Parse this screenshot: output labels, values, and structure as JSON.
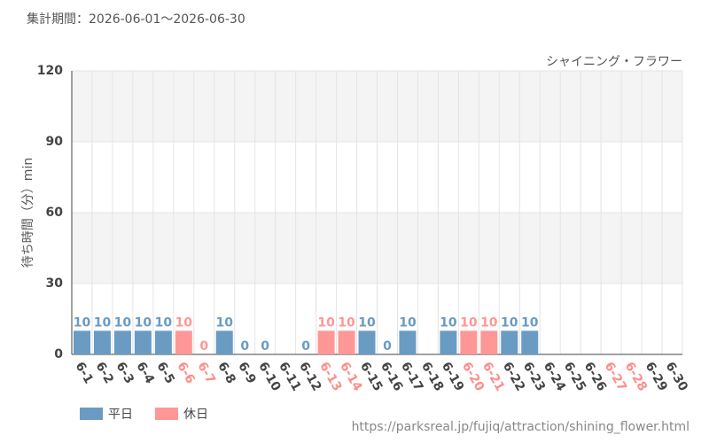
{
  "chart_data": {
    "type": "bar",
    "title": "集計期間：2026-06-01～2026-06-30",
    "annotation": "シャイニング・フラワー",
    "y_label": "待ち時間（分）min",
    "source": "https://parksreal.jp/fujiq/attraction/shining_flower.html",
    "categories": [
      "6-1",
      "6-2",
      "6-3",
      "6-4",
      "6-5",
      "6-6",
      "6-7",
      "6-8",
      "6-9",
      "6-10",
      "6-11",
      "6-12",
      "6-13",
      "6-14",
      "6-15",
      "6-16",
      "6-17",
      "6-18",
      "6-19",
      "6-20",
      "6-21",
      "6-22",
      "6-23",
      "6-24",
      "6-25",
      "6-26",
      "6-27",
      "6-28",
      "6-29",
      "6-30"
    ],
    "category_label_colors": [
      "#444",
      "#444",
      "#444",
      "#444",
      "#444",
      "#ff8c8c",
      "#ff8c8c",
      "#444",
      "#444",
      "#444",
      "#444",
      "#444",
      "#ff8c8c",
      "#ff8c8c",
      "#444",
      "#444",
      "#444",
      "#444",
      "#444",
      "#ff8c8c",
      "#ff8c8c",
      "#444",
      "#444",
      "#444",
      "#444",
      "#444",
      "#ff8c8c",
      "#ff8c8c",
      "#444",
      "#444"
    ],
    "series": [
      {
        "name": "平日",
        "color": "#6a9bc3",
        "values": [
          10,
          10,
          10,
          10,
          10,
          null,
          null,
          10,
          0,
          0,
          null,
          0,
          null,
          null,
          10,
          0,
          10,
          null,
          10,
          null,
          null,
          10,
          10,
          null,
          null,
          null,
          null,
          null,
          null,
          null
        ]
      },
      {
        "name": "休日",
        "color": "#ff9797",
        "values": [
          null,
          null,
          null,
          null,
          null,
          10,
          0,
          null,
          null,
          null,
          null,
          null,
          10,
          10,
          null,
          null,
          null,
          null,
          null,
          10,
          10,
          null,
          null,
          null,
          null,
          null,
          null,
          null,
          null,
          null
        ]
      }
    ],
    "ylim": [
      0,
      120
    ],
    "yticks": [
      0,
      30,
      60,
      90,
      120
    ],
    "grid": true
  }
}
